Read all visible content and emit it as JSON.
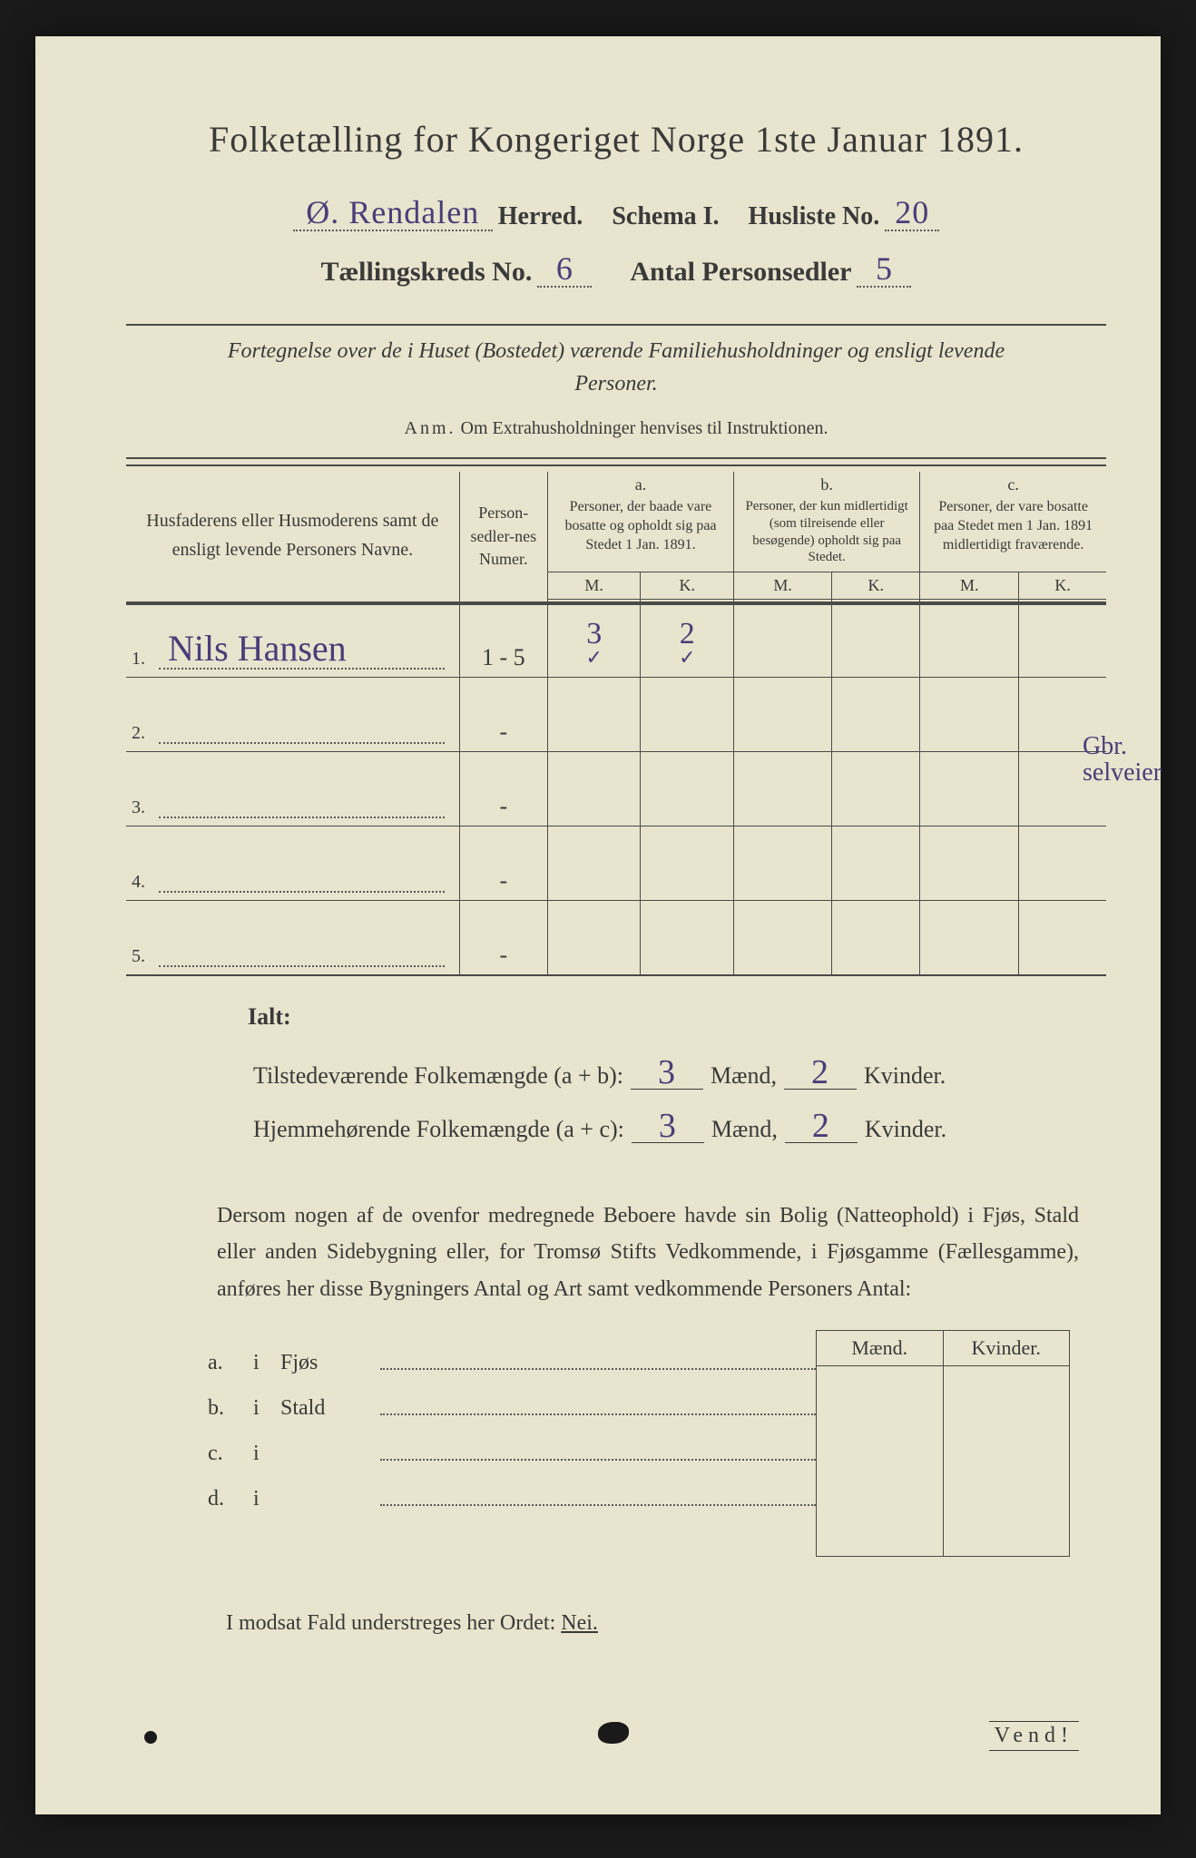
{
  "background_color": "#1a1a1a",
  "paper_color": "#e8e4cd",
  "ink_color": "#3a3a3a",
  "pen_color": "#4a3d7a",
  "title": "Folketælling for Kongeriget Norge 1ste Januar 1891.",
  "header": {
    "herred_value": "Ø. Rendalen",
    "herred_label": "Herred.",
    "schema_label": "Schema I.",
    "husliste_label": "Husliste No.",
    "husliste_value": "20",
    "kreds_label": "Tællingskreds No.",
    "kreds_value": "6",
    "personsedler_label": "Antal Personsedler",
    "personsedler_value": "5"
  },
  "subtitle": "Fortegnelse over de i Huset (Bostedet) værende Familiehusholdninger og ensligt levende Personer.",
  "anm_label": "Anm.",
  "anm_text": "Om Extrahusholdninger henvises til Instruktionen.",
  "table": {
    "col_name": "Husfaderens eller Husmoderens samt de ensligt levende Personers Navne.",
    "col_num": "Person-sedler-nes Numer.",
    "abc": {
      "a": "a.",
      "b": "b.",
      "c": "c."
    },
    "col_a": "Personer, der baade vare bosatte og opholdt sig paa Stedet 1 Jan. 1891.",
    "col_b": "Personer, der kun midlertidigt (som tilreisende eller besøgende) opholdt sig paa Stedet.",
    "col_c": "Personer, der vare bosatte paa Stedet men 1 Jan. 1891 midlertidigt fraværende.",
    "mk": {
      "m": "M.",
      "k": "K."
    },
    "rows": [
      {
        "n": "1.",
        "name": "Nils Hansen",
        "num": "1 - 5",
        "a_m": "3",
        "a_k": "2",
        "tick_m": "✓",
        "tick_k": "✓"
      },
      {
        "n": "2.",
        "name": "",
        "num": "-",
        "a_m": "",
        "a_k": ""
      },
      {
        "n": "3.",
        "name": "",
        "num": "-",
        "a_m": "",
        "a_k": ""
      },
      {
        "n": "4.",
        "name": "",
        "num": "-",
        "a_m": "",
        "a_k": ""
      },
      {
        "n": "5.",
        "name": "",
        "num": "-",
        "a_m": "",
        "a_k": ""
      }
    ]
  },
  "margin_note_1": "Gbr.",
  "margin_note_2": "selveier",
  "totals": {
    "ialt": "Ialt:",
    "row1_label": "Tilstedeværende Folkemængde (a + b):",
    "row2_label": "Hjemmehørende Folkemængde (a + c):",
    "maend": "Mænd,",
    "kvinder": "Kvinder.",
    "val_m1": "3",
    "val_k1": "2",
    "val_m2": "3",
    "val_k2": "2"
  },
  "para": "Dersom nogen af de ovenfor medregnede Beboere havde sin Bolig (Natteophold) i Fjøs, Stald eller anden Sidebygning eller, for Tromsø Stifts Vedkommende, i Fjøsgamme (Fællesgamme), anføres her disse Bygningers Antal og Art samt vedkommende Personers Antal:",
  "buildings": {
    "hdr_m": "Mænd.",
    "hdr_k": "Kvinder.",
    "rows": [
      {
        "lbl": "a.",
        "i": "i",
        "type": "Fjøs"
      },
      {
        "lbl": "b.",
        "i": "i",
        "type": "Stald"
      },
      {
        "lbl": "c.",
        "i": "i",
        "type": ""
      },
      {
        "lbl": "d.",
        "i": "i",
        "type": ""
      }
    ]
  },
  "nei_text_pre": "I modsat Fald understreges her Ordet: ",
  "nei_word": "Nei.",
  "vend": "Vend!"
}
